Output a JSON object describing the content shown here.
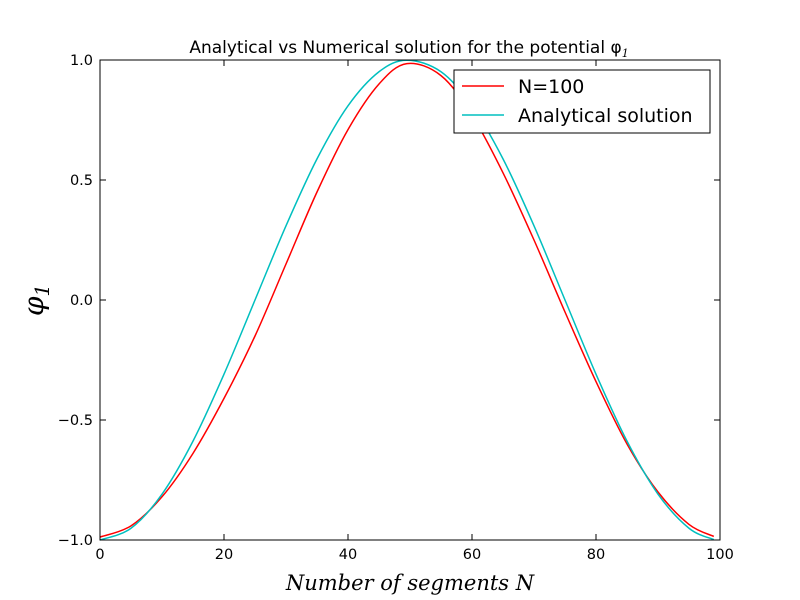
{
  "chart_data": {
    "type": "line",
    "title": "Analytical vs Numerical solution for the potential φ",
    "title_subscript": "1",
    "xlabel": "Number of segments N",
    "ylabel": "φ",
    "ylabel_subscript": "1",
    "xlim": [
      0,
      100
    ],
    "ylim": [
      -1.0,
      1.0
    ],
    "xticks": [
      0,
      20,
      40,
      60,
      80,
      100
    ],
    "xtick_labels": [
      "0",
      "20",
      "40",
      "60",
      "80",
      "100"
    ],
    "yticks": [
      -1.0,
      -0.5,
      0.0,
      0.5,
      1.0
    ],
    "ytick_labels": [
      "−1.0",
      "−0.5",
      "0.0",
      "0.5",
      "1.0"
    ],
    "grid": false,
    "legend_position": "top-right",
    "series": [
      {
        "name": "N=100",
        "color": "#ff0000",
        "x": [
          0,
          5,
          10,
          15,
          20,
          25,
          30,
          35,
          40,
          45,
          49.5,
          55,
          60,
          65,
          70,
          75,
          80,
          85,
          90,
          95,
          99
        ],
        "y": [
          -0.988,
          -0.941,
          -0.82,
          -0.639,
          -0.41,
          -0.15,
          0.15,
          0.45,
          0.71,
          0.9,
          0.985,
          0.935,
          0.77,
          0.53,
          0.25,
          -0.05,
          -0.34,
          -0.6,
          -0.8,
          -0.935,
          -0.985
        ]
      },
      {
        "name": "Analytical solution",
        "color": "#00bfbf",
        "x": [
          0,
          5,
          10,
          15,
          20,
          25,
          30,
          35,
          40,
          45,
          49.5,
          55,
          60,
          65,
          70,
          75,
          80,
          85,
          90,
          95,
          99
        ],
        "y": [
          -1.0,
          -0.951,
          -0.809,
          -0.588,
          -0.309,
          0.0,
          0.309,
          0.588,
          0.809,
          0.951,
          0.999,
          0.951,
          0.809,
          0.588,
          0.309,
          0.0,
          -0.309,
          -0.588,
          -0.809,
          -0.951,
          -0.998
        ]
      }
    ]
  }
}
